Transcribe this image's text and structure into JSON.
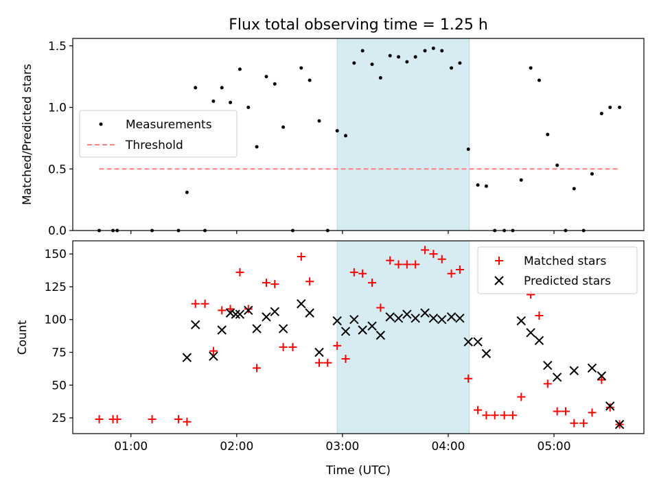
{
  "chart_data": [
    {
      "type": "scatter",
      "title": "Flux total observing time = 1.25 h",
      "xlabel": "",
      "ylabel": "Matched/Predicted stars",
      "xlim": [
        0.45,
        5.85
      ],
      "ylim": [
        0,
        1.56
      ],
      "yticks": [
        0,
        0.5,
        1.0,
        1.5
      ],
      "ytick_labels": [
        "0.0",
        "0.5",
        "1.0",
        "1.5"
      ],
      "xticks": [
        1,
        2,
        3,
        4,
        5
      ],
      "xtick_labels": [
        "",
        "",
        "",
        "",
        ""
      ],
      "shaded_region": {
        "x0": 2.95,
        "x1": 4.2,
        "color": "#add8e6"
      },
      "threshold": {
        "name": "Threshold",
        "value": 0.5,
        "x": [
          0.7,
          5.62
        ],
        "color": "#ff7f7f"
      },
      "series": [
        {
          "name": "Measurements",
          "marker": "dot",
          "color": "#000000",
          "x": [
            0.7,
            0.83,
            0.87,
            1.2,
            1.45,
            1.53,
            1.61,
            1.7,
            1.78,
            1.86,
            1.94,
            2.03,
            2.11,
            2.19,
            2.28,
            2.36,
            2.44,
            2.53,
            2.61,
            2.69,
            2.78,
            2.86,
            2.95,
            3.03,
            3.11,
            3.19,
            3.28,
            3.36,
            3.45,
            3.53,
            3.61,
            3.69,
            3.78,
            3.86,
            3.94,
            4.03,
            4.11,
            4.19,
            4.28,
            4.36,
            4.44,
            4.53,
            4.61,
            4.69,
            4.78,
            4.86,
            4.94,
            5.03,
            5.11,
            5.19,
            5.28,
            5.36,
            5.45,
            5.53,
            5.62
          ],
          "y": [
            0,
            0,
            0,
            0,
            0,
            0.31,
            1.16,
            0,
            1.05,
            1.16,
            1.04,
            1.31,
            1.0,
            0.68,
            1.25,
            1.19,
            0.84,
            0,
            1.32,
            1.22,
            0.89,
            0,
            0.81,
            0.77,
            1.36,
            1.46,
            1.35,
            1.24,
            1.42,
            1.41,
            1.37,
            1.41,
            1.46,
            1.48,
            1.46,
            1.32,
            1.36,
            0.66,
            0.37,
            0.36,
            0,
            0,
            0,
            0.41,
            1.32,
            1.22,
            0.78,
            0.53,
            0,
            0.34,
            0,
            0.46,
            0.95,
            1.0,
            1.0
          ]
        }
      ],
      "legend": {
        "position": "center-left",
        "entries": [
          "Measurements",
          "Threshold"
        ]
      }
    },
    {
      "type": "scatter",
      "title": "",
      "xlabel": "Time (UTC)",
      "ylabel": "Count",
      "xlim": [
        0.45,
        5.85
      ],
      "ylim": [
        13,
        160
      ],
      "yticks": [
        25,
        50,
        75,
        100,
        125,
        150
      ],
      "ytick_labels": [
        "25",
        "50",
        "75",
        "100",
        "125",
        "150"
      ],
      "xticks": [
        1,
        2,
        3,
        4,
        5
      ],
      "xtick_labels": [
        "01:00",
        "02:00",
        "03:00",
        "04:00",
        "05:00"
      ],
      "shaded_region": {
        "x0": 2.95,
        "x1": 4.2,
        "color": "#add8e6"
      },
      "series": [
        {
          "name": "Matched stars",
          "marker": "plus",
          "color": "#ff0000",
          "x": [
            0.7,
            0.83,
            0.87,
            1.2,
            1.45,
            1.53,
            1.61,
            1.7,
            1.78,
            1.86,
            1.94,
            2.03,
            2.11,
            2.19,
            2.28,
            2.36,
            2.44,
            2.53,
            2.61,
            2.69,
            2.78,
            2.86,
            2.95,
            3.03,
            3.11,
            3.19,
            3.28,
            3.36,
            3.45,
            3.53,
            3.61,
            3.69,
            3.78,
            3.86,
            3.94,
            4.03,
            4.11,
            4.19,
            4.28,
            4.36,
            4.44,
            4.53,
            4.61,
            4.69,
            4.78,
            4.86,
            4.94,
            5.03,
            5.11,
            5.19,
            5.28,
            5.36,
            5.45,
            5.53,
            5.62
          ],
          "y": [
            24,
            24,
            24,
            24,
            24,
            22,
            112,
            112,
            76,
            107,
            108,
            136,
            108,
            63,
            128,
            127,
            79,
            79,
            148,
            129,
            67,
            67,
            80,
            70,
            136,
            135,
            128,
            109,
            145,
            142,
            142,
            142,
            153,
            150,
            146,
            135,
            138,
            55,
            31,
            27,
            27,
            27,
            27,
            41,
            119,
            103,
            51,
            30,
            30,
            21,
            21,
            29,
            54,
            33,
            20
          ]
        },
        {
          "name": "Predicted stars",
          "marker": "x",
          "color": "#000000",
          "x": [
            1.53,
            1.61,
            1.78,
            1.86,
            1.94,
            1.99,
            2.03,
            2.11,
            2.19,
            2.28,
            2.36,
            2.44,
            2.61,
            2.69,
            2.78,
            2.95,
            3.03,
            3.11,
            3.19,
            3.28,
            3.36,
            3.45,
            3.53,
            3.61,
            3.69,
            3.78,
            3.86,
            3.94,
            4.03,
            4.11,
            4.19,
            4.28,
            4.36,
            4.69,
            4.78,
            4.86,
            4.94,
            5.03,
            5.19,
            5.36,
            5.45,
            5.53,
            5.62
          ],
          "y": [
            71,
            96,
            72,
            92,
            105,
            104,
            104,
            107,
            93,
            102,
            106,
            93,
            112,
            105,
            75,
            99,
            91,
            100,
            92,
            95,
            88,
            102,
            101,
            104,
            101,
            105,
            101,
            100,
            102,
            101,
            83,
            83,
            74,
            99,
            90,
            84,
            65,
            56,
            61,
            63,
            57,
            34,
            20
          ]
        }
      ],
      "legend": {
        "position": "top-right",
        "entries": [
          "Matched stars",
          "Predicted stars"
        ]
      }
    }
  ]
}
